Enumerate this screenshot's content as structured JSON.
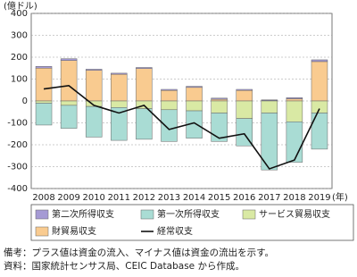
{
  "chart_data": {
    "type": "bar",
    "stacked": true,
    "y_unit": "(億ドル)",
    "x_unit": "(年)",
    "categories": [
      "2008",
      "2009",
      "2010",
      "2011",
      "2012",
      "2013",
      "2014",
      "2015",
      "2016",
      "2017",
      "2018",
      "2019"
    ],
    "series": [
      {
        "name": "第二次所得収支",
        "color": "#a59ad4",
        "values": [
          8,
          8,
          5,
          5,
          5,
          5,
          5,
          5,
          5,
          3,
          5,
          8
        ]
      },
      {
        "name": "第一次所得収支",
        "color": "#a9dcd4",
        "values": [
          -100,
          -105,
          -140,
          -150,
          -140,
          -145,
          -125,
          -130,
          -125,
          -260,
          -185,
          -165
        ]
      },
      {
        "name": "サービス貿易収支",
        "color": "#d9e9a4",
        "values": [
          -10,
          -20,
          -25,
          -30,
          -35,
          -40,
          -45,
          -55,
          -80,
          -55,
          -95,
          -55
        ]
      },
      {
        "name": "財貿易収支",
        "color": "#f9cb90",
        "values": [
          150,
          185,
          140,
          122,
          148,
          48,
          62,
          8,
          48,
          2,
          10,
          180
        ]
      },
      {
        "name": "経常収支",
        "color": "#111111",
        "type": "line",
        "values": [
          55,
          70,
          -20,
          -55,
          -20,
          -130,
          -100,
          -170,
          -150,
          -310,
          -270,
          -35
        ]
      }
    ],
    "ylim": [
      -400,
      400
    ],
    "yticks": [
      -400,
      -300,
      -200,
      -100,
      0,
      100,
      200,
      300,
      400
    ],
    "notes": [
      "備考：プラス値は資金の流入、マイナス値は資金の流出を示す。",
      "資料：国家統計センサス局、CEIC Database から作成。"
    ]
  }
}
